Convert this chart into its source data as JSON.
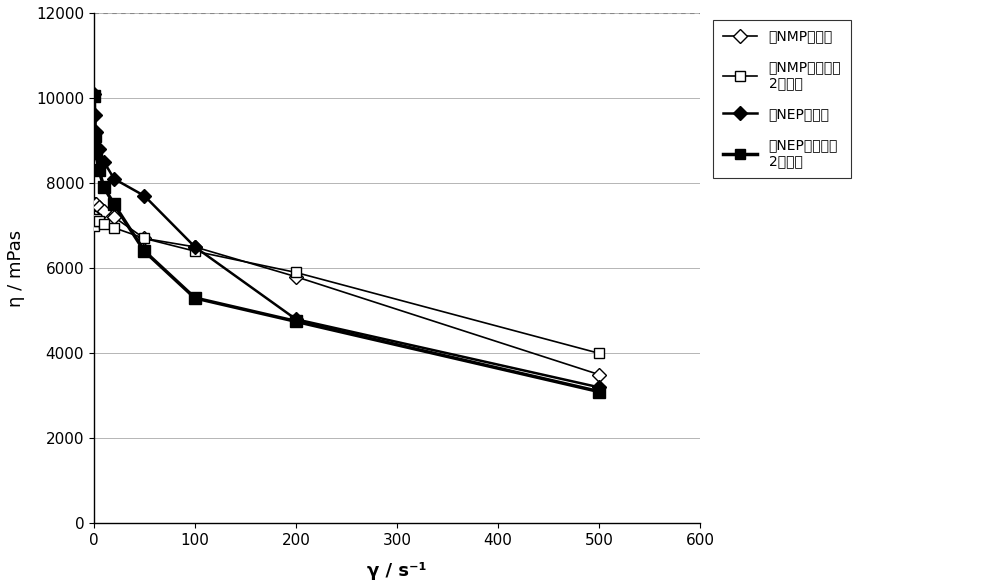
{
  "series": [
    {
      "label": "用NMP的浆料",
      "x": [
        0.5,
        1.0,
        2.0,
        5.0,
        10.0,
        20.0,
        50.0,
        100.0,
        200.0,
        500.0
      ],
      "y": [
        7500,
        7500,
        7500,
        7450,
        7350,
        7200,
        6700,
        6500,
        5800,
        3500
      ],
      "marker": "D",
      "markersize": 7,
      "markerfacecolor": "white",
      "markeredgecolor": "black",
      "color": "black",
      "linewidth": 1.2,
      "zorder": 3
    },
    {
      "label": "用NMP的浆料，\n2小时后",
      "x": [
        0.5,
        1.0,
        2.0,
        5.0,
        10.0,
        20.0,
        50.0,
        100.0,
        200.0,
        500.0
      ],
      "y": [
        7000,
        7100,
        7150,
        7100,
        7050,
        6950,
        6700,
        6400,
        5900,
        4000
      ],
      "marker": "s",
      "markersize": 7,
      "markerfacecolor": "white",
      "markeredgecolor": "black",
      "color": "black",
      "linewidth": 1.2,
      "zorder": 3
    },
    {
      "label": "用NEP的浆料",
      "x": [
        0.5,
        1.0,
        2.0,
        5.0,
        10.0,
        20.0,
        50.0,
        100.0,
        200.0,
        500.0
      ],
      "y": [
        10100,
        9600,
        9200,
        8800,
        8500,
        8100,
        7700,
        6500,
        4800,
        3200
      ],
      "marker": "D",
      "markersize": 7,
      "markerfacecolor": "black",
      "markeredgecolor": "black",
      "color": "black",
      "linewidth": 1.8,
      "zorder": 4
    },
    {
      "label": "用NEP的浆料，\n2小时后",
      "x": [
        0.5,
        1.0,
        2.0,
        5.0,
        10.0,
        20.0,
        50.0,
        100.0,
        200.0,
        500.0
      ],
      "y": [
        10050,
        9100,
        8700,
        8300,
        7900,
        7500,
        6400,
        5300,
        4750,
        3100
      ],
      "marker": "s",
      "markersize": 8,
      "markerfacecolor": "black",
      "markeredgecolor": "black",
      "color": "black",
      "linewidth": 2.5,
      "zorder": 5
    }
  ],
  "xlabel": "γ / s⁻¹",
  "ylabel": "η / mPas",
  "xlim": [
    0,
    600
  ],
  "ylim": [
    0,
    12000
  ],
  "yticks": [
    0,
    2000,
    4000,
    6000,
    8000,
    10000,
    12000
  ],
  "xticks": [
    0,
    100,
    200,
    300,
    400,
    500,
    600
  ],
  "xtick_labels": [
    "0",
    "100",
    "200",
    "300",
    "400",
    "500",
    "600"
  ],
  "background_color": "#ffffff",
  "legend_labels": [
    "用NMP的浆料",
    "用NMP的浆料，\n2小时后",
    "用NEP的浆料",
    "用NEP的浆料，\n2小时后"
  ],
  "legend_markers": [
    "D",
    "s",
    "D",
    "s"
  ],
  "legend_facecolors": [
    "white",
    "white",
    "black",
    "black"
  ],
  "legend_linewidths": [
    1.2,
    1.2,
    1.8,
    2.5
  ]
}
